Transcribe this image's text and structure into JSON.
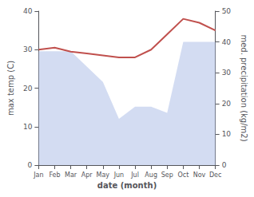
{
  "chart_data": {
    "type": "line",
    "xlabel": "date (month)",
    "ylabel": "max temp (C)",
    "y2label": "med. precipitation (kg/m2)",
    "categories": [
      "Jan",
      "Feb",
      "Mar",
      "Apr",
      "May",
      "Jun",
      "Jul",
      "Aug",
      "Sep",
      "Oct",
      "Nov",
      "Dec"
    ],
    "series": [
      {
        "type": "area",
        "axis": "y2",
        "color": "#afc0e8",
        "values": [
          37,
          37,
          37,
          32,
          27,
          15,
          19,
          19,
          17,
          40,
          40,
          40
        ]
      },
      {
        "type": "line",
        "color": "#c0504d",
        "values": [
          30,
          30.5,
          29.5,
          29,
          28.5,
          28,
          28,
          30,
          34,
          38,
          37,
          35
        ]
      }
    ],
    "ylim": [
      0,
      40
    ],
    "yticks": [
      0,
      10,
      20,
      30,
      40
    ],
    "y2lim": [
      0,
      50
    ],
    "y2ticks": [
      0,
      10,
      20,
      30,
      40,
      50
    ],
    "grid": false
  }
}
